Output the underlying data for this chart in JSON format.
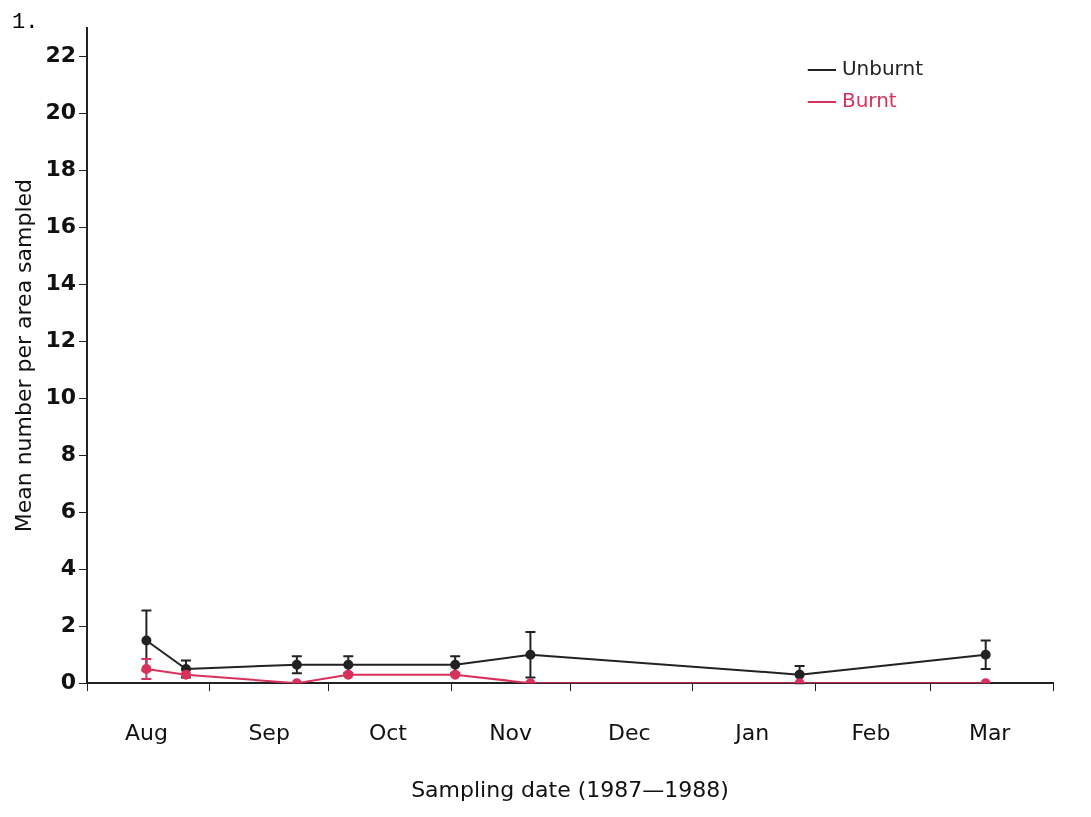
{
  "chart_data": {
    "type": "line",
    "annotations": [
      "1."
    ],
    "xlabel": "Sampling date (1987—1988)",
    "ylabel": "Mean number per area sampled",
    "x": [
      "1987-08-16",
      "1987-08-26",
      "1987-09-23",
      "1987-10-06",
      "1987-11-02",
      "1987-11-21",
      "1988-01-28",
      "1988-03-15"
    ],
    "series": [
      {
        "name": "Unburnt",
        "color": "#222222",
        "values": [
          1.5,
          0.5,
          0.65,
          0.65,
          0.65,
          1.0,
          0.3,
          1.0
        ],
        "errors": [
          1.05,
          0.3,
          0.3,
          0.3,
          0.3,
          0.8,
          0.3,
          0.5
        ]
      },
      {
        "name": "Burnt",
        "color": "#d8315b",
        "values": [
          0.5,
          0.3,
          0,
          0.3,
          0.3,
          0,
          0,
          0
        ],
        "errors": [
          0.35,
          null,
          null,
          null,
          null,
          null,
          null,
          null
        ]
      }
    ],
    "xlim": [
      "1987-08-01",
      "1988-04-01"
    ],
    "xticks": [
      {
        "value": "1987-08-01",
        "label": null
      },
      {
        "value": "1987-08-16",
        "label": "Aug"
      },
      {
        "value": "1987-09-01",
        "label": null
      },
      {
        "value": "1987-09-16",
        "label": "Sep"
      },
      {
        "value": "1987-10-01",
        "label": null
      },
      {
        "value": "1987-10-16",
        "label": "Oct"
      },
      {
        "value": "1987-11-01",
        "label": null
      },
      {
        "value": "1987-11-16",
        "label": "Nov"
      },
      {
        "value": "1987-12-01",
        "label": null
      },
      {
        "value": "1987-12-16",
        "label": "Dec"
      },
      {
        "value": "1988-01-01",
        "label": null
      },
      {
        "value": "1988-01-16",
        "label": "Jan"
      },
      {
        "value": "1988-02-01",
        "label": null
      },
      {
        "value": "1988-02-15",
        "label": "Feb"
      },
      {
        "value": "1988-03-01",
        "label": null
      },
      {
        "value": "1988-03-16",
        "label": "Mar"
      },
      {
        "value": "1988-04-01",
        "label": null
      }
    ],
    "ylim": [
      0,
      23
    ],
    "yticks": [
      0,
      2,
      4,
      6,
      8,
      10,
      12,
      14,
      16,
      18,
      20,
      22
    ],
    "grid": false,
    "legend": "top right",
    "marker": "circle",
    "line_style": "solid"
  }
}
